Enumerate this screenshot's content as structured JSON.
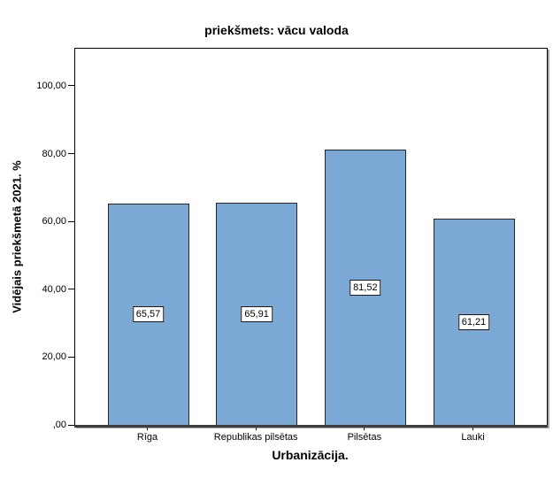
{
  "chart_data": {
    "type": "bar",
    "title": "priekšmets: vācu valoda",
    "xlabel": "Urbanizācija.",
    "ylabel": "Vidējais priekšmetā 2021. %",
    "categories": [
      "Rīga",
      "Republikas pilsētas",
      "Pilsētas",
      "Lauki"
    ],
    "values": [
      65.57,
      65.91,
      81.52,
      61.21
    ],
    "value_labels": [
      "65,57",
      "65,91",
      "81,52",
      "61,21"
    ],
    "yticks": [
      0,
      20,
      40,
      60,
      80,
      100
    ],
    "ytick_labels": [
      ",00",
      "20,00",
      "40,00",
      "60,00",
      "80,00",
      "100,00"
    ],
    "ylim": [
      0,
      111.2
    ],
    "grid": false,
    "legend": false,
    "bar_color": "#7CA8D6",
    "bar_border_color": "#262626",
    "axis_color": "#000000"
  }
}
